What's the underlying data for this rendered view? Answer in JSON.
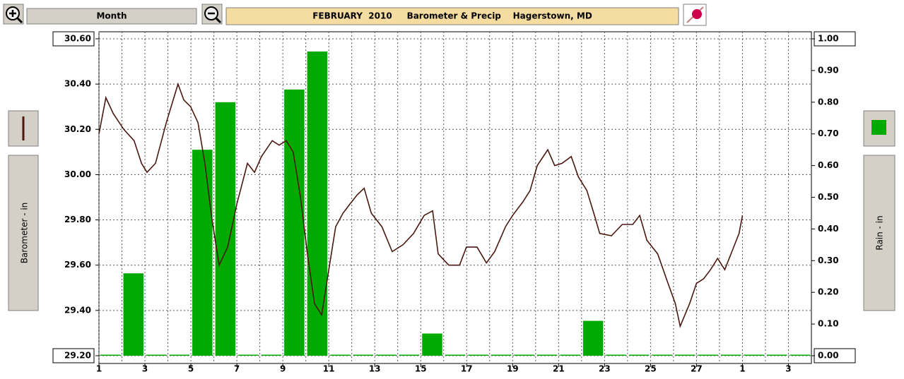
{
  "toolbar": {
    "period": "Month"
  },
  "chart_data": {
    "type": "weather-combo",
    "title": "FEBRUARY  2010     Barometer & Precip    Hagerstown, MD",
    "xlim": [
      1,
      32
    ],
    "xticks": [
      1,
      3,
      5,
      7,
      9,
      11,
      13,
      15,
      17,
      19,
      21,
      23,
      25,
      27,
      {
        "value": 29,
        "label": "1"
      },
      {
        "value": 31,
        "label": "3"
      }
    ],
    "ylim": [
      29.2,
      30.6
    ],
    "yticks": [
      {
        "value": 29.2,
        "label": "29.20"
      },
      {
        "value": 29.4,
        "label": "29.40"
      },
      {
        "value": 29.6,
        "label": "29.60"
      },
      {
        "value": 29.8,
        "label": "29.80"
      },
      {
        "value": 30.0,
        "label": "30.00"
      },
      {
        "value": 30.2,
        "label": "30.20"
      },
      {
        "value": 30.4,
        "label": "30.40"
      },
      {
        "value": 30.6,
        "label": "30.60"
      }
    ],
    "y2lim": [
      0,
      1
    ],
    "y2ticks": [
      {
        "value": 0,
        "label": "0.00"
      },
      {
        "value": 0.1,
        "label": "0.10"
      },
      {
        "value": 0.2,
        "label": "0.20"
      },
      {
        "value": 0.3,
        "label": "0.30"
      },
      {
        "value": 0.4,
        "label": "0.40"
      },
      {
        "value": 0.5,
        "label": "0.50"
      },
      {
        "value": 0.6,
        "label": "0.60"
      },
      {
        "value": 0.7,
        "label": "0.70"
      },
      {
        "value": 0.8,
        "label": "0.80"
      },
      {
        "value": 0.9,
        "label": "0.90"
      },
      {
        "value": 1.0,
        "label": "1.00"
      }
    ],
    "grid": true,
    "series": [
      {
        "name": "Barometer - in",
        "type": "line",
        "color": "#4a1810",
        "x": [
          1.0,
          1.3,
          1.62,
          2.08,
          2.53,
          2.85,
          3.09,
          3.46,
          3.93,
          4.23,
          4.44,
          4.69,
          4.99,
          5.31,
          5.61,
          5.92,
          6.23,
          6.6,
          7.0,
          7.46,
          7.77,
          8.07,
          8.54,
          8.84,
          9.15,
          9.45,
          9.77,
          10.07,
          10.38,
          10.69,
          11.0,
          11.3,
          11.62,
          11.92,
          12.23,
          12.54,
          12.85,
          13.31,
          13.76,
          14.23,
          14.69,
          15.15,
          15.52,
          15.76,
          16.22,
          16.69,
          16.99,
          17.45,
          17.86,
          18.22,
          18.69,
          19.0,
          19.45,
          19.76,
          20.07,
          20.53,
          20.83,
          21.15,
          21.55,
          21.86,
          22.23,
          22.53,
          22.79,
          23.3,
          23.77,
          24.23,
          24.53,
          24.84,
          25.31,
          25.76,
          26.08,
          26.29,
          26.7,
          27.0,
          27.31,
          27.61,
          27.92,
          28.23,
          28.54,
          28.85,
          29.0
        ],
        "values": [
          30.18,
          30.34,
          30.27,
          30.2,
          30.15,
          30.05,
          30.01,
          30.05,
          30.23,
          30.33,
          30.4,
          30.33,
          30.3,
          30.23,
          30.05,
          29.8,
          29.6,
          29.68,
          29.87,
          30.05,
          30.01,
          30.08,
          30.15,
          30.13,
          30.15,
          30.1,
          29.9,
          29.65,
          29.43,
          29.38,
          29.58,
          29.77,
          29.83,
          29.87,
          29.91,
          29.94,
          29.83,
          29.77,
          29.66,
          29.69,
          29.74,
          29.82,
          29.84,
          29.65,
          29.6,
          29.6,
          29.68,
          29.68,
          29.61,
          29.66,
          29.77,
          29.82,
          29.88,
          29.93,
          30.04,
          30.11,
          30.04,
          30.05,
          30.08,
          29.99,
          29.93,
          29.83,
          29.74,
          29.73,
          29.78,
          29.78,
          29.82,
          29.71,
          29.65,
          29.52,
          29.43,
          29.33,
          29.43,
          29.52,
          29.54,
          29.58,
          29.63,
          29.58,
          29.66,
          29.74,
          29.82
        ]
      },
      {
        "name": "Rain - in",
        "type": "bar",
        "axis": "y2",
        "color": "#00aa00",
        "x": [
          1,
          2,
          3,
          4,
          5,
          6,
          7,
          8,
          9,
          10,
          11,
          12,
          13,
          14,
          15,
          16,
          17,
          18,
          19,
          20,
          21,
          22,
          23,
          24,
          25,
          26,
          27,
          28,
          29,
          30,
          31
        ],
        "values": [
          0,
          0.26,
          0,
          0,
          0.65,
          0.8,
          0,
          0,
          0.84,
          0.96,
          0,
          0,
          0,
          0,
          0.07,
          0,
          0,
          0,
          0,
          0,
          0,
          0.11,
          0,
          0,
          0,
          0,
          0,
          0,
          0,
          0,
          0
        ]
      }
    ]
  }
}
